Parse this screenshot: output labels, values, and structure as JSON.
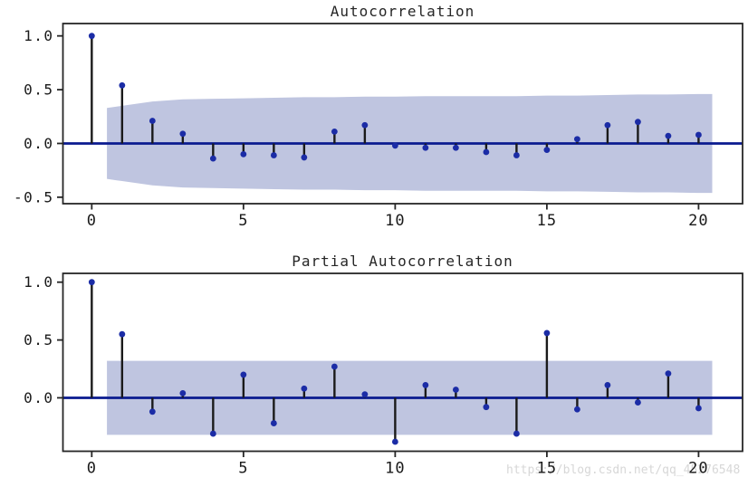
{
  "figure": {
    "watermark": "https://blog.csdn.net/qq_45276548"
  },
  "colors": {
    "background": "#ffffff",
    "band": "#bfc5e0",
    "zero_line": "#0a1a8f",
    "marker": "#1b2ca6",
    "stem": "#1a1a1a",
    "spine": "#262626",
    "tick_label": "#1a1a1a",
    "title": "#262626",
    "watermark": "#d7d7d7"
  },
  "chart_data": [
    {
      "type": "stem",
      "title": "Autocorrelation",
      "xlabel": "",
      "ylabel": "",
      "x": [
        0,
        1,
        2,
        3,
        4,
        5,
        6,
        7,
        8,
        9,
        10,
        11,
        12,
        13,
        14,
        15,
        16,
        17,
        18,
        19,
        20
      ],
      "values": [
        1.0,
        0.54,
        0.21,
        0.09,
        -0.14,
        -0.1,
        -0.11,
        -0.13,
        0.11,
        0.17,
        -0.02,
        -0.04,
        -0.04,
        -0.08,
        -0.11,
        -0.06,
        0.04,
        0.17,
        0.2,
        0.07,
        0.08
      ],
      "xticks": [
        0,
        5,
        10,
        15,
        20
      ],
      "xtick_labels": [
        "0",
        "5",
        "10",
        "15",
        "20"
      ],
      "yticks": [
        1.0,
        0.5,
        0.0,
        -0.5
      ],
      "ytick_labels": [
        "1.0",
        "0.5",
        "0.0",
        "-0.5"
      ],
      "xlim": [
        -0.95,
        21.45
      ],
      "ylim": [
        -0.56,
        1.115
      ],
      "grid": false,
      "legend": null,
      "conf_band": {
        "lags": [
          0.5,
          1,
          2,
          3,
          4,
          5,
          6,
          7,
          8,
          9,
          10,
          11,
          12,
          13,
          14,
          15,
          16,
          17,
          18,
          19,
          20,
          20.45
        ],
        "half_widths": [
          0.33,
          0.35,
          0.39,
          0.41,
          0.415,
          0.42,
          0.425,
          0.43,
          0.43,
          0.435,
          0.435,
          0.44,
          0.44,
          0.44,
          0.44,
          0.445,
          0.445,
          0.45,
          0.455,
          0.455,
          0.46,
          0.46
        ]
      }
    },
    {
      "type": "stem",
      "title": "Partial Autocorrelation",
      "xlabel": "",
      "ylabel": "",
      "x": [
        0,
        1,
        2,
        3,
        4,
        5,
        6,
        7,
        8,
        9,
        10,
        11,
        12,
        13,
        14,
        15,
        16,
        17,
        18,
        19,
        20
      ],
      "values": [
        1.0,
        0.55,
        -0.12,
        0.04,
        -0.31,
        0.2,
        -0.22,
        0.08,
        0.27,
        0.03,
        -0.38,
        0.11,
        0.07,
        -0.08,
        -0.31,
        0.56,
        -0.1,
        0.11,
        -0.04,
        0.21,
        -0.09
      ],
      "xticks": [
        0,
        5,
        10,
        15,
        20
      ],
      "xtick_labels": [
        "0",
        "5",
        "10",
        "15",
        "20"
      ],
      "yticks": [
        1.0,
        0.5,
        0.0
      ],
      "ytick_labels": [
        "1.0",
        "0.5",
        "0.0"
      ],
      "xlim": [
        -0.95,
        21.45
      ],
      "ylim": [
        -0.462,
        1.076
      ],
      "grid": false,
      "legend": null,
      "conf_band": {
        "lags": [
          0.5,
          20.45
        ],
        "half_widths": [
          0.32,
          0.32
        ]
      }
    }
  ]
}
